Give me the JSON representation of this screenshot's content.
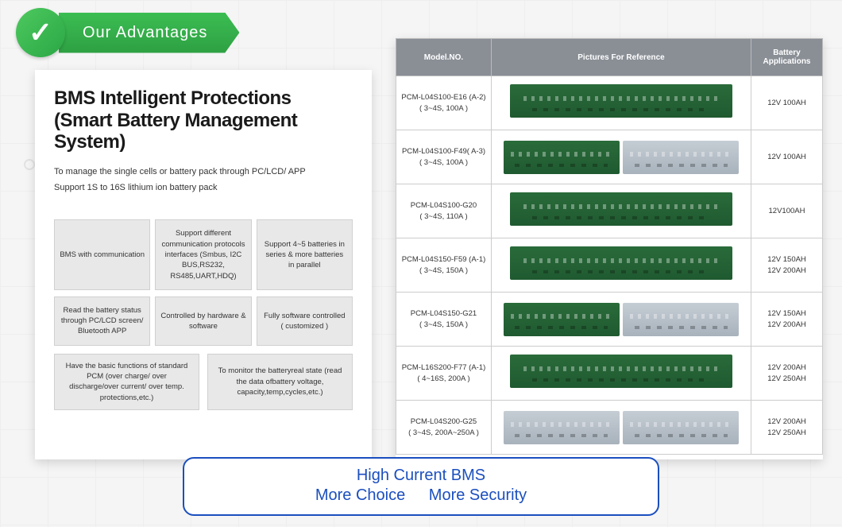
{
  "badge": {
    "label": "Our Advantages",
    "check": "✓"
  },
  "left": {
    "title": "BMS Intelligent Protections (Smart Battery Management System)",
    "sub1": "To manage the single cells or battery pack through PC/LCD/ APP",
    "sub2": "Support 1S to 16S lithium ion battery pack",
    "grid3": [
      "BMS with communication",
      "Support different communication protocols interfaces (Smbus, I2C BUS,RS232, RS485,UART,HDQ)",
      "Support 4~5 batteries in series & more batteries in parallel",
      "Read the battery status through PC/LCD screen/ Bluetooth APP",
      "Controlled by hardware & software",
      "Fully software controlled ( customized )"
    ],
    "grid2": [
      "Have the basic functions of standard PCM (over charge/ over discharge/over current/ over temp. protections,etc.)",
      "To monitor the batteryreal state (read the data ofbattery voltage, capacity,temp,cycles,etc.)"
    ]
  },
  "table": {
    "headers": [
      "Model.NO.",
      "Pictures For Reference",
      "Battery Applications"
    ],
    "rows": [
      {
        "model_l1": "PCM-L04S100-E16 (A-2)",
        "model_l2": "( 3~4S, 100A )",
        "app_l1": "12V 100AH",
        "app_l2": "",
        "pic": "single-green"
      },
      {
        "model_l1": "PCM-L04S100-F49( A-3)",
        "model_l2": "( 3~4S, 100A )",
        "app_l1": "12V 100AH",
        "app_l2": "",
        "pic": "pair-green-silver"
      },
      {
        "model_l1": "PCM-L04S100-G20",
        "model_l2": "( 3~4S, 110A )",
        "app_l1": "12V100AH",
        "app_l2": "",
        "pic": "single-green"
      },
      {
        "model_l1": "PCM-L04S150-F59 (A-1)",
        "model_l2": "( 3~4S, 150A )",
        "app_l1": "12V 150AH",
        "app_l2": "12V 200AH",
        "pic": "single-green"
      },
      {
        "model_l1": "PCM-L04S150-G21",
        "model_l2": "( 3~4S, 150A )",
        "app_l1": "12V 150AH",
        "app_l2": "12V 200AH",
        "pic": "pair-green-silver"
      },
      {
        "model_l1": "PCM-L16S200-F77 (A-1)",
        "model_l2": "( 4~16S, 200A )",
        "app_l1": "12V 200AH",
        "app_l2": "12V 250AH",
        "pic": "single-green"
      },
      {
        "model_l1": "PCM-L04S200-G25",
        "model_l2": "( 3~4S, 200A~250A )",
        "app_l1": "12V 200AH",
        "app_l2": "12V 250AH",
        "pic": "pair-silver-silver"
      }
    ]
  },
  "bottom": {
    "line1": "High Current BMS",
    "line2a": "More Choice",
    "line2b": "More Security"
  },
  "colors": {
    "accent_green": "#2ea043",
    "accent_blue": "#1b4fbf",
    "header_gray": "#8a8f96",
    "cell_bg": "#e8e8e8"
  }
}
